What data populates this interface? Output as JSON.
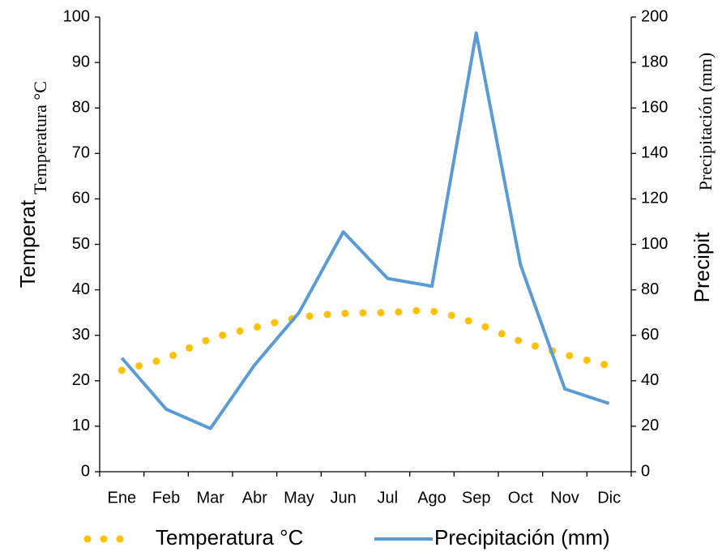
{
  "chart_data": {
    "type": "line",
    "categories": [
      "Ene",
      "Feb",
      "Mar",
      "Abr",
      "May",
      "Jun",
      "Jul",
      "Ago",
      "Sep",
      "Oct",
      "Nov",
      "Dic"
    ],
    "series": [
      {
        "name": "Temperatura °C",
        "color": "#ffc000",
        "style": "dotted",
        "values": [
          22.3,
          25,
          29.2,
          31.7,
          33.9,
          34.8,
          35,
          35.3,
          32.6,
          28.7,
          25.8,
          23.3
        ]
      },
      {
        "name": "Precipitación (mm)",
        "color": "#5b9bd5",
        "axis": "y2",
        "values": [
          50,
          27.5,
          19,
          47,
          70,
          105.5,
          85,
          81.6,
          193,
          91,
          36.4,
          30
        ]
      }
    ],
    "ylabel": "Temperatura °C",
    "ylabel_overlap": "Temperat",
    "y2label": "Precipitación (mm)",
    "y2label_overlap": "Precipit",
    "ylim": [
      0,
      100
    ],
    "yticks": [
      0,
      10,
      20,
      30,
      40,
      50,
      60,
      70,
      80,
      90,
      100
    ],
    "y2lim": [
      0,
      200
    ],
    "y2ticks": [
      0,
      20,
      40,
      60,
      80,
      100,
      120,
      140,
      160,
      180,
      200
    ],
    "grid": false,
    "legend": "bottom"
  }
}
